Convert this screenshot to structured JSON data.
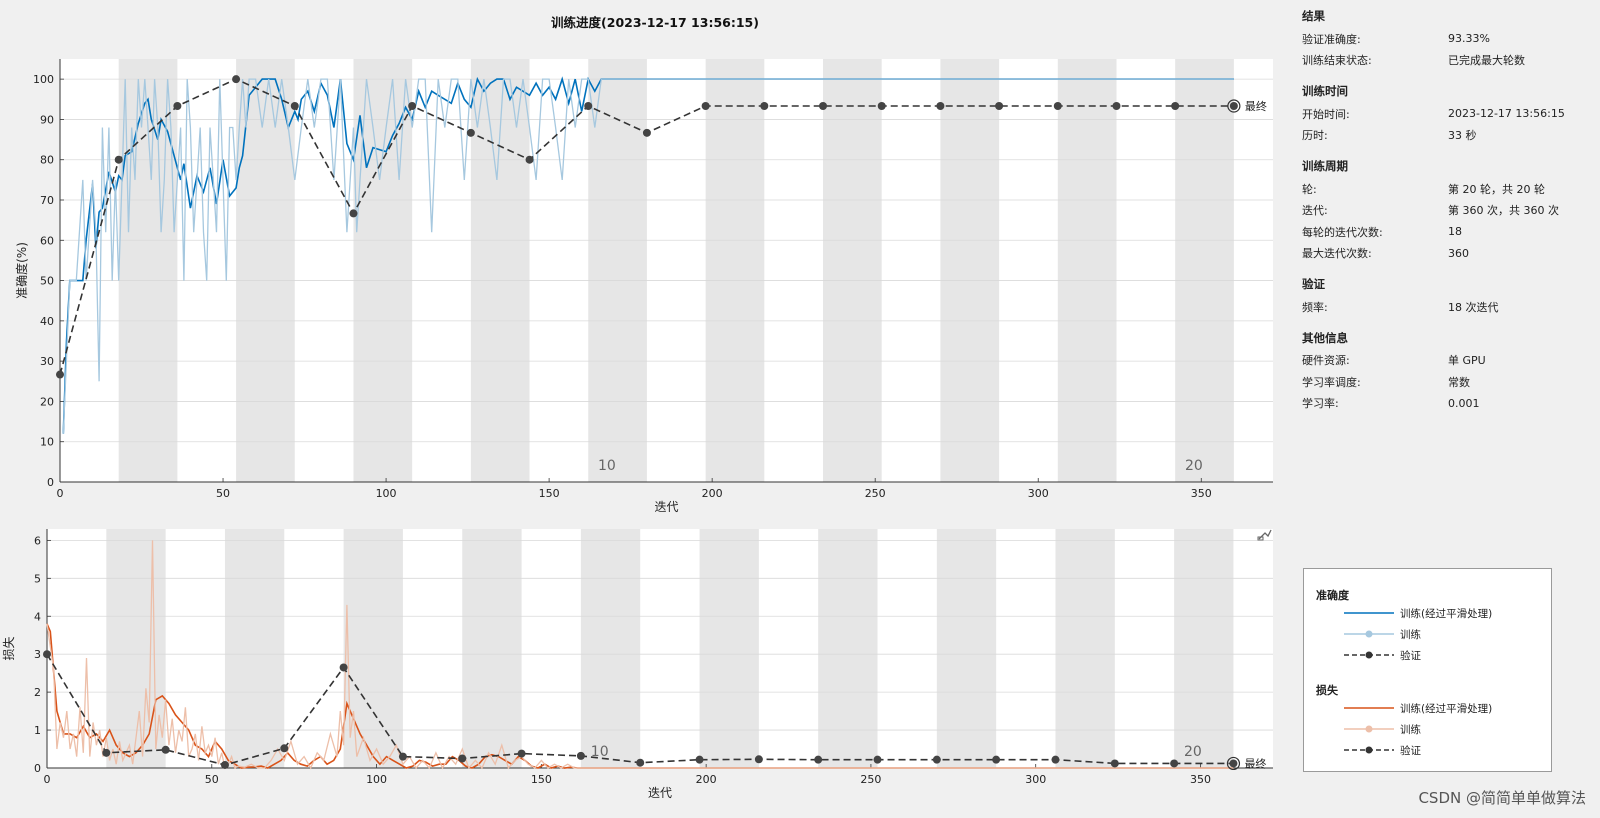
{
  "chart_data": [
    {
      "type": "line",
      "title": "训练进度(2023-12-17 13:56:15)",
      "xlabel": "迭代",
      "ylabel": "准确度(%)",
      "xlim": [
        0,
        372
      ],
      "ylim": [
        0,
        105
      ],
      "xticks": [
        0,
        50,
        100,
        150,
        200,
        250,
        300,
        350
      ],
      "yticks": [
        0,
        10,
        20,
        30,
        40,
        50,
        60,
        70,
        80,
        90,
        100
      ],
      "epoch_labels": [
        {
          "x": 165,
          "text": "10"
        },
        {
          "x": 345,
          "text": "20"
        }
      ],
      "final_label": "最终",
      "grid": true,
      "series": [
        {
          "name": "训练(经过平滑处理)",
          "color": "#0072bd",
          "x": [
            1,
            2,
            3,
            5,
            7,
            8,
            10,
            11,
            12,
            13,
            15,
            17,
            18,
            19,
            20,
            22,
            24,
            26,
            27,
            28,
            30,
            31,
            33,
            35,
            37,
            38,
            40,
            42,
            44,
            46,
            48,
            50,
            52,
            54,
            55,
            56,
            58,
            62,
            66,
            68,
            70,
            72,
            73,
            74,
            76,
            78,
            80,
            82,
            84,
            86,
            88,
            90,
            92,
            94,
            96,
            100,
            102,
            104,
            106,
            108,
            110,
            112,
            114,
            116,
            118,
            120,
            122,
            124,
            126,
            128,
            130,
            132,
            134,
            136,
            138,
            140,
            142,
            144,
            146,
            148,
            150,
            152,
            154,
            156,
            158,
            160,
            162,
            164,
            166,
            170,
            200,
            250,
            300,
            360
          ],
          "y": [
            12,
            35,
            50,
            50,
            50,
            60,
            74,
            58,
            67,
            68,
            77,
            72,
            76,
            75,
            81,
            82,
            89,
            94,
            95,
            90,
            85,
            90,
            87,
            81,
            75,
            79,
            68,
            76,
            72,
            78,
            69,
            80,
            71,
            73,
            78,
            81,
            96,
            100,
            100,
            95,
            88,
            92,
            90,
            95,
            97,
            92,
            99,
            96,
            88,
            100,
            84,
            80,
            91,
            78,
            83,
            82,
            86,
            89,
            93,
            90,
            97,
            93,
            97,
            96,
            95,
            94,
            99,
            95,
            93,
            100,
            97,
            99,
            100,
            100,
            95,
            98,
            97,
            96,
            99,
            96,
            98,
            95,
            100,
            94,
            100,
            92,
            100,
            97,
            100,
            100,
            100,
            100,
            100,
            100
          ]
        },
        {
          "name": "训练",
          "color": "#a6c8df",
          "x": [
            1,
            3,
            5,
            7,
            8,
            10,
            11,
            12,
            13,
            14,
            15,
            16,
            17,
            18,
            19,
            20,
            21,
            22,
            23,
            24,
            25,
            26,
            27,
            28,
            29,
            30,
            31,
            32,
            33,
            34,
            35,
            36,
            37,
            38,
            39,
            40,
            41,
            42,
            43,
            44,
            45,
            46,
            47,
            48,
            49,
            50,
            51,
            52,
            53,
            54,
            55,
            56,
            57,
            58,
            60,
            62,
            64,
            66,
            68,
            70,
            72,
            74,
            76,
            78,
            80,
            82,
            84,
            86,
            88,
            90,
            91,
            92,
            94,
            96,
            98,
            100,
            102,
            104,
            106,
            108,
            110,
            112,
            114,
            116,
            118,
            120,
            122,
            124,
            126,
            128,
            130,
            132,
            134,
            136,
            138,
            140,
            142,
            144,
            146,
            148,
            150,
            152,
            154,
            156,
            158,
            160,
            162,
            164,
            166,
            170,
            200,
            250,
            300,
            360
          ],
          "y": [
            12,
            50,
            50,
            75,
            50,
            75,
            62,
            25,
            88,
            62,
            88,
            50,
            75,
            50,
            75,
            100,
            62,
            88,
            75,
            100,
            88,
            100,
            88,
            75,
            100,
            88,
            62,
            75,
            100,
            88,
            62,
            75,
            88,
            50,
            100,
            88,
            62,
            75,
            88,
            62,
            50,
            88,
            75,
            62,
            100,
            75,
            50,
            88,
            88,
            75,
            88,
            100,
            88,
            100,
            100,
            88,
            100,
            88,
            100,
            88,
            75,
            88,
            100,
            88,
            100,
            100,
            75,
            100,
            62,
            88,
            62,
            75,
            100,
            88,
            75,
            88,
            100,
            75,
            100,
            88,
            100,
            100,
            62,
            100,
            88,
            100,
            100,
            75,
            100,
            88,
            100,
            88,
            75,
            100,
            100,
            88,
            100,
            88,
            75,
            100,
            100,
            88,
            75,
            100,
            88,
            100,
            100,
            88,
            100,
            100,
            100,
            100,
            100,
            100
          ]
        },
        {
          "name": "验证",
          "color": "#333333",
          "dash": true,
          "x": [
            0,
            18,
            36,
            54,
            72,
            90,
            108,
            126,
            144,
            162,
            180,
            198,
            216,
            234,
            252,
            270,
            288,
            306,
            324,
            342,
            360
          ],
          "y": [
            26.67,
            80,
            93.33,
            100,
            93.33,
            66.67,
            93.33,
            86.67,
            80,
            93.33,
            86.67,
            93.33,
            93.33,
            93.33,
            93.33,
            93.33,
            93.33,
            93.33,
            93.33,
            93.33,
            93.33
          ]
        }
      ]
    },
    {
      "type": "line",
      "xlabel": "迭代",
      "ylabel": "损失",
      "xlim": [
        0,
        372
      ],
      "ylim": [
        0,
        6.3
      ],
      "xticks": [
        0,
        50,
        100,
        150,
        200,
        250,
        300,
        350
      ],
      "yticks": [
        0,
        1,
        2,
        3,
        4,
        5,
        6
      ],
      "epoch_labels": [
        {
          "x": 165,
          "text": "10"
        },
        {
          "x": 345,
          "text": "20"
        }
      ],
      "final_label": "最终",
      "grid": true,
      "series": [
        {
          "name": "训练(经过平滑处理)",
          "color": "#d95319",
          "x": [
            0,
            1,
            3,
            5,
            7,
            9,
            11,
            13,
            15,
            17,
            19,
            21,
            23,
            25,
            27,
            29,
            31,
            33,
            35,
            37,
            39,
            41,
            43,
            45,
            47,
            49,
            51,
            53,
            55,
            57,
            59,
            61,
            63,
            65,
            67,
            69,
            71,
            73,
            75,
            77,
            79,
            81,
            83,
            85,
            87,
            89,
            91,
            93,
            95,
            97,
            99,
            101,
            103,
            105,
            107,
            109,
            111,
            113,
            115,
            117,
            119,
            121,
            123,
            125,
            127,
            129,
            131,
            133,
            135,
            137,
            139,
            141,
            143,
            145,
            147,
            149,
            151,
            153,
            155,
            157,
            159,
            161,
            165,
            170,
            200,
            250,
            300,
            360
          ],
          "y": [
            3.8,
            3.6,
            1.5,
            0.9,
            0.9,
            0.8,
            1.1,
            0.8,
            0.9,
            0.7,
            1.0,
            0.6,
            0.4,
            0.3,
            0.4,
            0.6,
            0.9,
            1.8,
            1.9,
            1.7,
            1.4,
            1.2,
            1.0,
            0.6,
            0.5,
            0.3,
            0.7,
            0.5,
            0.2,
            0.1,
            0.0,
            0.02,
            0.03,
            0.05,
            0.0,
            0.1,
            0.2,
            0.4,
            0.2,
            0.1,
            0.05,
            0.2,
            0.3,
            0.1,
            0.2,
            0.5,
            1.7,
            1.3,
            0.9,
            0.6,
            0.3,
            0.1,
            0.3,
            0.2,
            0.1,
            0.0,
            0.05,
            0.2,
            0.15,
            0.05,
            0.1,
            0.1,
            0.3,
            0.2,
            0.05,
            0.0,
            0.1,
            0.3,
            0.35,
            0.3,
            0.2,
            0.1,
            0.3,
            0.2,
            0.05,
            0.0,
            0.1,
            0.0,
            0.05,
            0.0,
            0.02,
            0.0,
            0.0,
            0.0,
            0.0,
            0.0,
            0.0,
            0.0
          ]
        },
        {
          "name": "训练",
          "color": "#edbfa9",
          "x": [
            0,
            1,
            2,
            3,
            4,
            5,
            6,
            7,
            8,
            9,
            10,
            11,
            12,
            13,
            14,
            15,
            16,
            17,
            18,
            19,
            20,
            21,
            22,
            23,
            24,
            25,
            26,
            27,
            28,
            29,
            30,
            31,
            32,
            33,
            34,
            35,
            36,
            37,
            38,
            39,
            40,
            41,
            42,
            43,
            44,
            45,
            46,
            47,
            48,
            49,
            50,
            51,
            52,
            53,
            54,
            55,
            56,
            57,
            58,
            60,
            62,
            64,
            66,
            68,
            70,
            72,
            74,
            76,
            78,
            80,
            82,
            84,
            86,
            88,
            89,
            90,
            91,
            92,
            93,
            94,
            96,
            98,
            100,
            102,
            104,
            106,
            108,
            110,
            112,
            114,
            116,
            118,
            120,
            122,
            124,
            126,
            128,
            130,
            132,
            134,
            136,
            138,
            140,
            142,
            144,
            146,
            148,
            150,
            152,
            154,
            156,
            158,
            160,
            165,
            170,
            200,
            250,
            300,
            360
          ],
          "y": [
            3.8,
            3.2,
            2.6,
            0.5,
            1.2,
            0.8,
            1.5,
            0.5,
            0.9,
            0.3,
            1.6,
            0.4,
            2.9,
            0.3,
            1.2,
            0.6,
            1.0,
            0.3,
            0.8,
            0.2,
            0.5,
            0.1,
            0.7,
            0.2,
            0.4,
            0.6,
            0.1,
            0.8,
            1.5,
            0.3,
            2.1,
            1.2,
            6.0,
            0.5,
            1.4,
            0.8,
            1.8,
            0.6,
            1.3,
            0.4,
            1.0,
            0.7,
            1.6,
            0.3,
            0.5,
            0.9,
            0.2,
            1.1,
            0.4,
            0.6,
            0.3,
            0.8,
            0.1,
            0.4,
            0.0,
            0.1,
            0.3,
            0.0,
            0.05,
            0.02,
            0.1,
            0.0,
            0.0,
            0.2,
            0.5,
            0.2,
            0.7,
            0.1,
            0.3,
            0.0,
            0.4,
            0.2,
            0.9,
            0.3,
            1.5,
            0.6,
            4.3,
            0.8,
            1.5,
            0.3,
            0.8,
            0.2,
            0.5,
            0.1,
            0.3,
            0.6,
            0.1,
            0.3,
            0.0,
            0.2,
            0.0,
            0.4,
            0.0,
            0.3,
            0.1,
            0.5,
            0.0,
            0.2,
            0.0,
            0.4,
            0.1,
            0.6,
            0.0,
            0.2,
            0.3,
            0.1,
            0.0,
            0.2,
            0.0,
            0.1,
            0.0,
            0.1,
            0.0,
            0.0,
            0.0,
            0.0,
            0.0,
            0.0,
            0.0
          ]
        },
        {
          "name": "验证",
          "color": "#333333",
          "dash": true,
          "x": [
            0,
            18,
            36,
            54,
            72,
            90,
            108,
            126,
            144,
            162,
            180,
            198,
            216,
            234,
            252,
            270,
            288,
            306,
            324,
            342,
            360
          ],
          "y": [
            3.0,
            0.4,
            0.48,
            0.08,
            0.52,
            2.65,
            0.3,
            0.25,
            0.38,
            0.32,
            0.14,
            0.22,
            0.23,
            0.22,
            0.22,
            0.22,
            0.22,
            0.22,
            0.12,
            0.12,
            0.12
          ]
        }
      ]
    }
  ],
  "info": {
    "sections": [
      {
        "title": "结果",
        "rows": [
          {
            "k": "验证准确度:",
            "v": "93.33%"
          },
          {
            "k": "训练结束状态:",
            "v": "已完成最大轮数"
          }
        ]
      },
      {
        "title": "训练时间",
        "rows": [
          {
            "k": "开始时间:",
            "v": "2023-12-17 13:56:15"
          },
          {
            "k": "历时:",
            "v": "33 秒"
          }
        ]
      },
      {
        "title": "训练周期",
        "rows": [
          {
            "k": "轮:",
            "v": "第 20 轮，共 20 轮"
          },
          {
            "k": "迭代:",
            "v": "第 360 次，共 360 次"
          },
          {
            "k": "每轮的迭代次数:",
            "v": "18"
          },
          {
            "k": "最大迭代次数:",
            "v": "360"
          }
        ]
      },
      {
        "title": "验证",
        "rows": [
          {
            "k": "频率:",
            "v": "18 次迭代"
          }
        ]
      },
      {
        "title": "其他信息",
        "rows": [
          {
            "k": "硬件资源:",
            "v": "单 GPU"
          },
          {
            "k": "学习率调度:",
            "v": "常数"
          },
          {
            "k": "学习率:",
            "v": "0.001"
          }
        ]
      }
    ]
  },
  "legend": {
    "accuracy_title": "准确度",
    "loss_title": "损失",
    "smoothed": "训练(经过平滑处理)",
    "train": "训练",
    "val": "验证"
  },
  "watermark": "CSDN @简简单单做算法"
}
